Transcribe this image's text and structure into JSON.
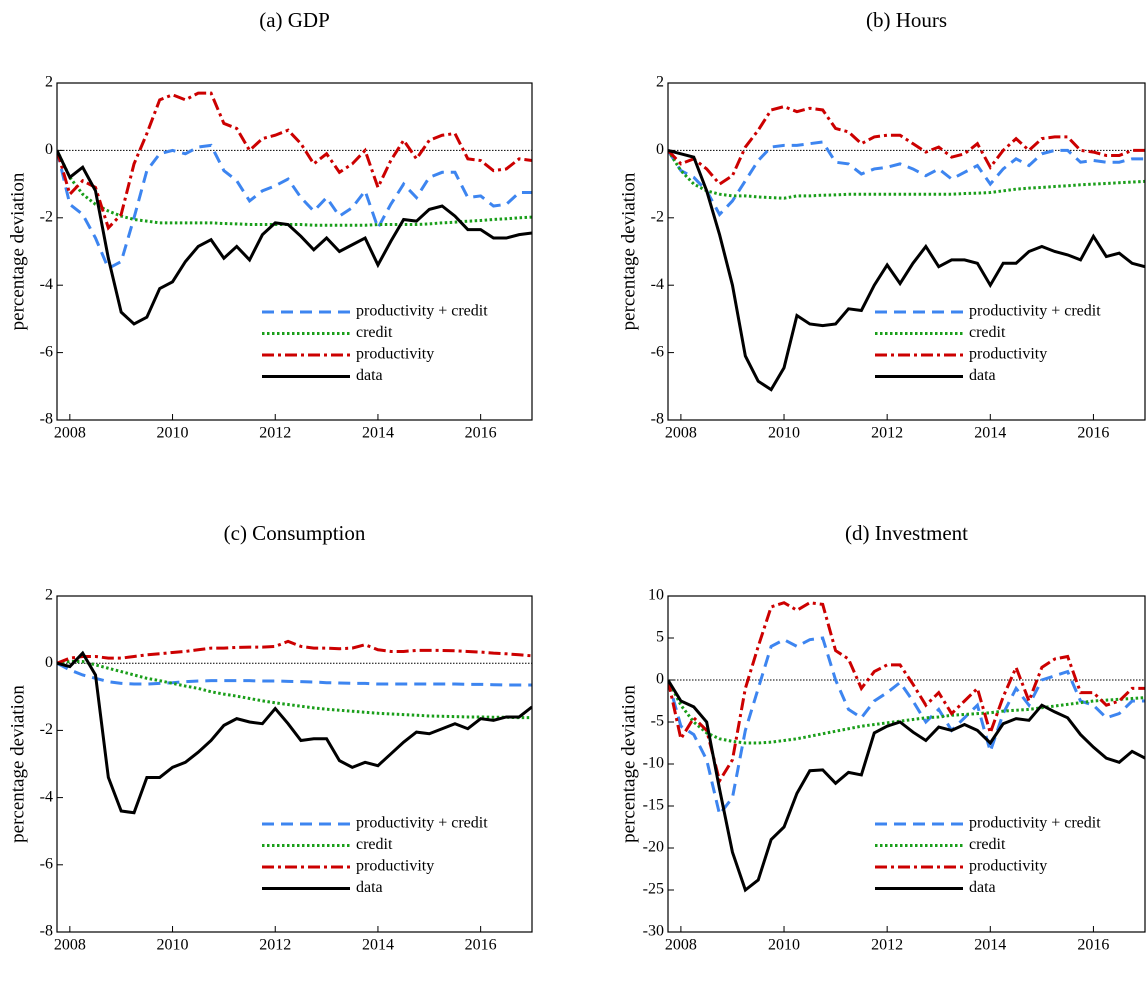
{
  "chart_data": [
    {
      "type": "line",
      "title": "(a) GDP",
      "ylabel": "percentage deviation",
      "x": [
        2007.75,
        2008,
        2008.25,
        2008.5,
        2008.75,
        2009,
        2009.25,
        2009.5,
        2009.75,
        2010,
        2010.25,
        2010.5,
        2010.75,
        2011,
        2011.25,
        2011.5,
        2011.75,
        2012,
        2012.25,
        2012.5,
        2012.75,
        2013,
        2013.25,
        2013.5,
        2013.75,
        2014,
        2014.25,
        2014.5,
        2014.75,
        2015,
        2015.25,
        2015.5,
        2015.75,
        2016,
        2016.25,
        2016.5,
        2016.75,
        2017
      ],
      "xlim": [
        2007.75,
        2017
      ],
      "xticks": [
        2008,
        2010,
        2012,
        2014,
        2016
      ],
      "ylim": [
        -8,
        2
      ],
      "yticks": [
        -8,
        -6,
        -4,
        -2,
        0,
        2
      ],
      "legend": "lower right",
      "series": [
        {
          "name": "productivity + credit",
          "color": "#3d85f0",
          "linestyle": "dashed",
          "values": [
            0,
            -1.6,
            -1.9,
            -2.6,
            -3.5,
            -3.3,
            -2.0,
            -0.6,
            -0.1,
            0.0,
            -0.1,
            0.1,
            0.15,
            -0.6,
            -0.9,
            -1.5,
            -1.2,
            -1.05,
            -0.85,
            -1.4,
            -1.8,
            -1.4,
            -1.95,
            -1.7,
            -1.2,
            -2.3,
            -1.6,
            -1.0,
            -1.4,
            -0.8,
            -0.65,
            -0.65,
            -1.4,
            -1.35,
            -1.65,
            -1.6,
            -1.25,
            -1.25
          ]
        },
        {
          "name": "credit",
          "color": "#1a9e1a",
          "linestyle": "dotted",
          "values": [
            0,
            -0.8,
            -1.3,
            -1.6,
            -1.8,
            -1.95,
            -2.05,
            -2.1,
            -2.15,
            -2.15,
            -2.15,
            -2.15,
            -2.15,
            -2.17,
            -2.18,
            -2.2,
            -2.2,
            -2.2,
            -2.2,
            -2.2,
            -2.22,
            -2.22,
            -2.22,
            -2.22,
            -2.22,
            -2.2,
            -2.2,
            -2.2,
            -2.2,
            -2.18,
            -2.15,
            -2.13,
            -2.1,
            -2.08,
            -2.05,
            -2.03,
            -2.0,
            -1.98
          ]
        },
        {
          "name": "productivity",
          "color": "#cc0000",
          "linestyle": "dashdot",
          "values": [
            0,
            -1.3,
            -0.9,
            -1.1,
            -2.3,
            -1.9,
            -0.4,
            0.5,
            1.5,
            1.65,
            1.5,
            1.7,
            1.7,
            0.8,
            0.65,
            0.0,
            0.35,
            0.45,
            0.6,
            0.2,
            -0.4,
            -0.1,
            -0.65,
            -0.4,
            0.0,
            -1.1,
            -0.3,
            0.3,
            -0.25,
            0.3,
            0.45,
            0.5,
            -0.25,
            -0.3,
            -0.6,
            -0.55,
            -0.25,
            -0.3
          ]
        },
        {
          "name": "data",
          "color": "#000000",
          "linestyle": "solid",
          "values": [
            0,
            -0.8,
            -0.5,
            -1.2,
            -3.2,
            -4.8,
            -5.15,
            -4.95,
            -4.1,
            -3.9,
            -3.3,
            -2.85,
            -2.65,
            -3.2,
            -2.85,
            -3.25,
            -2.5,
            -2.15,
            -2.2,
            -2.55,
            -2.95,
            -2.6,
            -3.0,
            -2.8,
            -2.6,
            -3.4,
            -2.7,
            -2.05,
            -2.1,
            -1.75,
            -1.65,
            -1.95,
            -2.35,
            -2.35,
            -2.6,
            -2.6,
            -2.5,
            -2.45
          ]
        }
      ]
    },
    {
      "type": "line",
      "title": "(b) Hours",
      "ylabel": "percentage deviation",
      "x": [
        2007.75,
        2008,
        2008.25,
        2008.5,
        2008.75,
        2009,
        2009.25,
        2009.5,
        2009.75,
        2010,
        2010.25,
        2010.5,
        2010.75,
        2011,
        2011.25,
        2011.5,
        2011.75,
        2012,
        2012.25,
        2012.5,
        2012.75,
        2013,
        2013.25,
        2013.5,
        2013.75,
        2014,
        2014.25,
        2014.5,
        2014.75,
        2015,
        2015.25,
        2015.5,
        2015.75,
        2016,
        2016.25,
        2016.5,
        2016.75,
        2017
      ],
      "xlim": [
        2007.75,
        2017
      ],
      "xticks": [
        2008,
        2010,
        2012,
        2014,
        2016
      ],
      "ylim": [
        -8,
        2
      ],
      "yticks": [
        -8,
        -6,
        -4,
        -2,
        0,
        2
      ],
      "legend": "lower right",
      "series": [
        {
          "name": "productivity + credit",
          "color": "#3d85f0",
          "linestyle": "dashed",
          "values": [
            0,
            -0.6,
            -0.8,
            -1.2,
            -1.9,
            -1.5,
            -0.9,
            -0.3,
            0.1,
            0.15,
            0.15,
            0.2,
            0.25,
            -0.35,
            -0.4,
            -0.7,
            -0.55,
            -0.5,
            -0.4,
            -0.55,
            -0.75,
            -0.55,
            -0.85,
            -0.65,
            -0.45,
            -1.0,
            -0.55,
            -0.25,
            -0.45,
            -0.1,
            0.0,
            0.0,
            -0.35,
            -0.3,
            -0.35,
            -0.35,
            -0.25,
            -0.25
          ]
        },
        {
          "name": "credit",
          "color": "#1a9e1a",
          "linestyle": "dotted",
          "values": [
            0,
            -0.6,
            -1.0,
            -1.2,
            -1.3,
            -1.35,
            -1.35,
            -1.38,
            -1.4,
            -1.42,
            -1.35,
            -1.35,
            -1.33,
            -1.32,
            -1.3,
            -1.3,
            -1.3,
            -1.3,
            -1.3,
            -1.3,
            -1.3,
            -1.3,
            -1.3,
            -1.28,
            -1.27,
            -1.25,
            -1.2,
            -1.15,
            -1.12,
            -1.1,
            -1.07,
            -1.05,
            -1.02,
            -1.0,
            -0.98,
            -0.96,
            -0.94,
            -0.92
          ]
        },
        {
          "name": "productivity",
          "color": "#cc0000",
          "linestyle": "dashdot",
          "values": [
            0,
            -0.4,
            -0.25,
            -0.55,
            -1.0,
            -0.75,
            0.1,
            0.6,
            1.2,
            1.3,
            1.15,
            1.25,
            1.2,
            0.65,
            0.55,
            0.2,
            0.4,
            0.45,
            0.45,
            0.2,
            -0.05,
            0.1,
            -0.2,
            -0.1,
            0.2,
            -0.5,
            0.0,
            0.35,
            0.0,
            0.35,
            0.4,
            0.4,
            0.0,
            -0.05,
            -0.15,
            -0.15,
            0.0,
            0.0
          ]
        },
        {
          "name": "data",
          "color": "#000000",
          "linestyle": "solid",
          "values": [
            0,
            -0.1,
            -0.2,
            -1.2,
            -2.5,
            -4.0,
            -6.1,
            -6.85,
            -7.1,
            -6.45,
            -4.9,
            -5.15,
            -5.2,
            -5.15,
            -4.7,
            -4.75,
            -4.0,
            -3.4,
            -3.95,
            -3.35,
            -2.85,
            -3.45,
            -3.25,
            -3.25,
            -3.35,
            -4.0,
            -3.35,
            -3.35,
            -3.0,
            -2.85,
            -3.0,
            -3.1,
            -3.25,
            -2.55,
            -3.15,
            -3.05,
            -3.35,
            -3.45
          ]
        }
      ]
    },
    {
      "type": "line",
      "title": "(c) Consumption",
      "ylabel": "percentage deviation",
      "x": [
        2007.75,
        2008,
        2008.25,
        2008.5,
        2008.75,
        2009,
        2009.25,
        2009.5,
        2009.75,
        2010,
        2010.25,
        2010.5,
        2010.75,
        2011,
        2011.25,
        2011.5,
        2011.75,
        2012,
        2012.25,
        2012.5,
        2012.75,
        2013,
        2013.25,
        2013.5,
        2013.75,
        2014,
        2014.25,
        2014.5,
        2014.75,
        2015,
        2015.25,
        2015.5,
        2015.75,
        2016,
        2016.25,
        2016.5,
        2016.75,
        2017
      ],
      "xlim": [
        2007.75,
        2017
      ],
      "xticks": [
        2008,
        2010,
        2012,
        2014,
        2016
      ],
      "ylim": [
        -8,
        2
      ],
      "yticks": [
        -8,
        -6,
        -4,
        -2,
        0,
        2
      ],
      "legend": "lower right",
      "series": [
        {
          "name": "productivity + credit",
          "color": "#3d85f0",
          "linestyle": "dashed",
          "values": [
            0,
            -0.2,
            -0.35,
            -0.45,
            -0.55,
            -0.6,
            -0.62,
            -0.62,
            -0.6,
            -0.58,
            -0.55,
            -0.53,
            -0.52,
            -0.52,
            -0.52,
            -0.52,
            -0.53,
            -0.53,
            -0.54,
            -0.55,
            -0.56,
            -0.58,
            -0.59,
            -0.6,
            -0.6,
            -0.62,
            -0.62,
            -0.62,
            -0.62,
            -0.62,
            -0.62,
            -0.62,
            -0.63,
            -0.63,
            -0.64,
            -0.65,
            -0.65,
            -0.65
          ]
        },
        {
          "name": "credit",
          "color": "#1a9e1a",
          "linestyle": "dotted",
          "values": [
            0,
            0.05,
            0.05,
            -0.05,
            -0.15,
            -0.25,
            -0.35,
            -0.45,
            -0.52,
            -0.6,
            -0.68,
            -0.75,
            -0.85,
            -0.92,
            -0.98,
            -1.05,
            -1.12,
            -1.18,
            -1.23,
            -1.28,
            -1.33,
            -1.37,
            -1.4,
            -1.43,
            -1.46,
            -1.49,
            -1.51,
            -1.53,
            -1.55,
            -1.57,
            -1.58,
            -1.59,
            -1.6,
            -1.6,
            -1.61,
            -1.61,
            -1.62,
            -1.62
          ]
        },
        {
          "name": "productivity",
          "color": "#cc0000",
          "linestyle": "dashdot",
          "values": [
            0,
            0.15,
            0.2,
            0.2,
            0.15,
            0.15,
            0.2,
            0.25,
            0.28,
            0.32,
            0.35,
            0.4,
            0.45,
            0.45,
            0.47,
            0.48,
            0.48,
            0.5,
            0.65,
            0.5,
            0.45,
            0.45,
            0.43,
            0.45,
            0.55,
            0.4,
            0.35,
            0.35,
            0.38,
            0.38,
            0.38,
            0.37,
            0.35,
            0.33,
            0.3,
            0.28,
            0.25,
            0.22
          ]
        },
        {
          "name": "data",
          "color": "#000000",
          "linestyle": "solid",
          "values": [
            0,
            -0.1,
            0.3,
            -0.35,
            -3.4,
            -4.4,
            -4.45,
            -3.4,
            -3.4,
            -3.1,
            -2.95,
            -2.65,
            -2.3,
            -1.85,
            -1.65,
            -1.75,
            -1.8,
            -1.35,
            -1.8,
            -2.3,
            -2.25,
            -2.25,
            -2.9,
            -3.1,
            -2.95,
            -3.05,
            -2.7,
            -2.35,
            -2.05,
            -2.1,
            -1.95,
            -1.8,
            -1.95,
            -1.65,
            -1.7,
            -1.6,
            -1.6,
            -1.3
          ]
        }
      ]
    },
    {
      "type": "line",
      "title": "(d) Investment",
      "ylabel": "percentage deviation",
      "x": [
        2007.75,
        2008,
        2008.25,
        2008.5,
        2008.75,
        2009,
        2009.25,
        2009.5,
        2009.75,
        2010,
        2010.25,
        2010.5,
        2010.75,
        2011,
        2011.25,
        2011.5,
        2011.75,
        2012,
        2012.25,
        2012.5,
        2012.75,
        2013,
        2013.25,
        2013.5,
        2013.75,
        2014,
        2014.25,
        2014.5,
        2014.75,
        2015,
        2015.25,
        2015.5,
        2015.75,
        2016,
        2016.25,
        2016.5,
        2016.75,
        2017
      ],
      "xlim": [
        2007.75,
        2017
      ],
      "xticks": [
        2008,
        2010,
        2012,
        2014,
        2016
      ],
      "ylim": [
        -30,
        10
      ],
      "yticks": [
        -30,
        -25,
        -20,
        -15,
        -10,
        -5,
        0,
        5,
        10
      ],
      "legend": "lower right",
      "series": [
        {
          "name": "productivity + credit",
          "color": "#3d85f0",
          "linestyle": "dashed",
          "values": [
            0,
            -5.5,
            -6.5,
            -9.5,
            -16.0,
            -14.0,
            -6.0,
            -1.0,
            4.0,
            4.8,
            4.0,
            4.8,
            5.0,
            0.0,
            -3.5,
            -4.5,
            -2.5,
            -1.5,
            -0.3,
            -2.5,
            -5.0,
            -3.5,
            -6.0,
            -4.5,
            -3.0,
            -8.5,
            -4.0,
            -1.0,
            -3.0,
            0.0,
            0.5,
            1.0,
            -2.5,
            -3.0,
            -4.5,
            -4.0,
            -2.5,
            -2.5
          ]
        },
        {
          "name": "credit",
          "color": "#1a9e1a",
          "linestyle": "dotted",
          "values": [
            0,
            -3.0,
            -5.0,
            -6.3,
            -7.0,
            -7.3,
            -7.5,
            -7.5,
            -7.4,
            -7.2,
            -7.0,
            -6.7,
            -6.4,
            -6.1,
            -5.8,
            -5.5,
            -5.3,
            -5.1,
            -4.9,
            -4.7,
            -4.5,
            -4.4,
            -4.2,
            -4.1,
            -4.0,
            -3.9,
            -3.7,
            -3.6,
            -3.5,
            -3.3,
            -3.1,
            -2.9,
            -2.7,
            -2.5,
            -2.4,
            -2.3,
            -2.2,
            -2.1
          ]
        },
        {
          "name": "productivity",
          "color": "#cc0000",
          "linestyle": "dashdot",
          "values": [
            0,
            -7.0,
            -4.5,
            -6.0,
            -12.0,
            -9.5,
            -1.0,
            4.0,
            8.7,
            9.2,
            8.3,
            9.2,
            9.0,
            3.5,
            2.5,
            -1.0,
            1.0,
            1.8,
            1.8,
            -0.5,
            -3.0,
            -1.5,
            -4.0,
            -2.5,
            -1.0,
            -6.3,
            -2.0,
            1.5,
            -2.5,
            1.5,
            2.5,
            2.8,
            -1.5,
            -1.5,
            -3.0,
            -2.5,
            -1.0,
            -1.0
          ]
        },
        {
          "name": "data",
          "color": "#000000",
          "linestyle": "solid",
          "values": [
            0,
            -2.5,
            -3.2,
            -5.0,
            -13.0,
            -20.5,
            -25.0,
            -23.8,
            -19.0,
            -17.5,
            -13.5,
            -10.8,
            -10.7,
            -12.3,
            -11.0,
            -11.3,
            -6.3,
            -5.5,
            -5.0,
            -6.2,
            -7.2,
            -5.6,
            -6.0,
            -5.3,
            -6.0,
            -7.5,
            -5.2,
            -4.6,
            -4.8,
            -3.0,
            -3.8,
            -4.5,
            -6.5,
            -8.0,
            -9.3,
            -9.8,
            -8.5,
            -9.3
          ]
        }
      ]
    }
  ]
}
